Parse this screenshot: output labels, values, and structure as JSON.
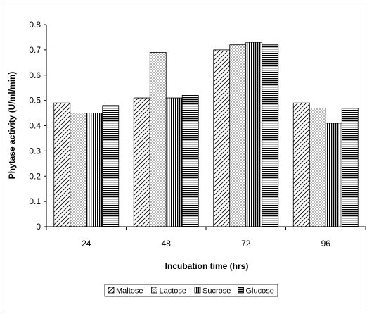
{
  "chart_data": {
    "type": "bar",
    "title": "",
    "xlabel": "Incubation time (hrs)",
    "ylabel": "Phytase activity (U/ml/min)",
    "categories": [
      "24",
      "48",
      "72",
      "96"
    ],
    "ylim": [
      0,
      0.8
    ],
    "yticks": [
      "0",
      "0.1",
      "0.2",
      "0.3",
      "0.4",
      "0.5",
      "0.6",
      "0.7",
      "0.8"
    ],
    "grid": false,
    "legend_position": "bottom",
    "series": [
      {
        "name": "Maltose",
        "pattern": "diagonal-hatch",
        "values": [
          0.49,
          0.51,
          0.7,
          0.49
        ]
      },
      {
        "name": "Lactose",
        "pattern": "dots",
        "values": [
          0.45,
          0.69,
          0.72,
          0.47
        ]
      },
      {
        "name": "Sucrose",
        "pattern": "vertical-lines",
        "values": [
          0.45,
          0.51,
          0.73,
          0.41
        ]
      },
      {
        "name": "Glucose",
        "pattern": "horizontal-lines",
        "values": [
          0.48,
          0.52,
          0.72,
          0.47
        ]
      }
    ]
  }
}
